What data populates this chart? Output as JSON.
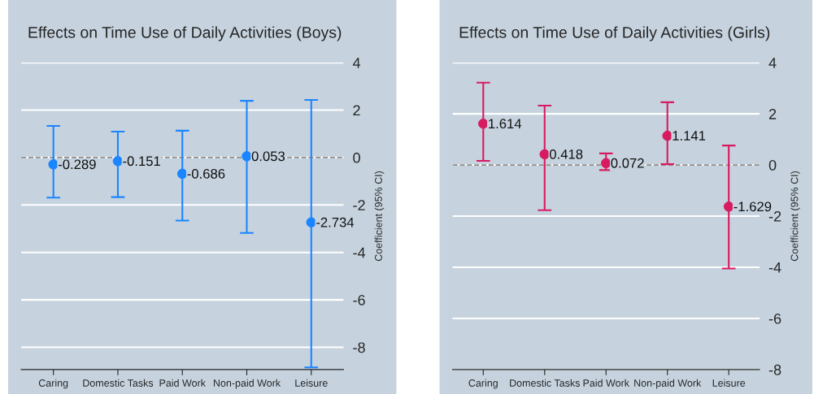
{
  "chart_data": [
    {
      "type": "scatter",
      "title": "Effects on Time Use of Daily Activities (Boys)",
      "ylabel": "Coefficient (95% CI)",
      "categories": [
        "Caring",
        "Domestic Tasks",
        "Paid Work",
        "Non-paid Work",
        "Leisure"
      ],
      "values": [
        -0.289,
        -0.151,
        -0.686,
        0.053,
        -2.734
      ],
      "errors": [
        [
          -1.69,
          1.33
        ],
        [
          -1.67,
          1.09
        ],
        [
          -2.66,
          1.13
        ],
        [
          -3.18,
          2.39
        ],
        [
          -8.85,
          2.43
        ]
      ],
      "color": "#1a85ff",
      "marker": "circle",
      "data_labels": true,
      "ylim": [
        -8.94,
        4
      ],
      "yticks": [
        -8,
        -6,
        -4,
        -2,
        0,
        2,
        4
      ],
      "grid": "y",
      "ref_lines": [
        {
          "axis": "y",
          "value": 0,
          "color": "#8c8c8c",
          "line_style": "dashed"
        }
      ]
    },
    {
      "type": "scatter",
      "title": "Effects on Time Use of Daily Activities (Girls)",
      "ylabel": "Coefficient (95% CI)",
      "categories": [
        "Caring",
        "Domestic Tasks",
        "Paid Work",
        "Non-paid Work",
        "Leisure"
      ],
      "values": [
        1.614,
        0.418,
        0.072,
        1.141,
        -1.629
      ],
      "errors": [
        [
          0.16,
          3.22
        ],
        [
          -1.77,
          2.32
        ],
        [
          -0.2,
          0.45
        ],
        [
          0.03,
          2.45
        ],
        [
          -4.05,
          0.76
        ]
      ],
      "color": "#d81b60",
      "marker": "circle",
      "data_labels": true,
      "ylim": [
        -8,
        4
      ],
      "yticks": [
        -8,
        -6,
        -4,
        -2,
        0,
        2,
        4
      ],
      "grid": "y",
      "ref_lines": [
        {
          "axis": "y",
          "value": 0,
          "color": "#8c8c8c",
          "line_style": "dashed"
        }
      ]
    }
  ]
}
